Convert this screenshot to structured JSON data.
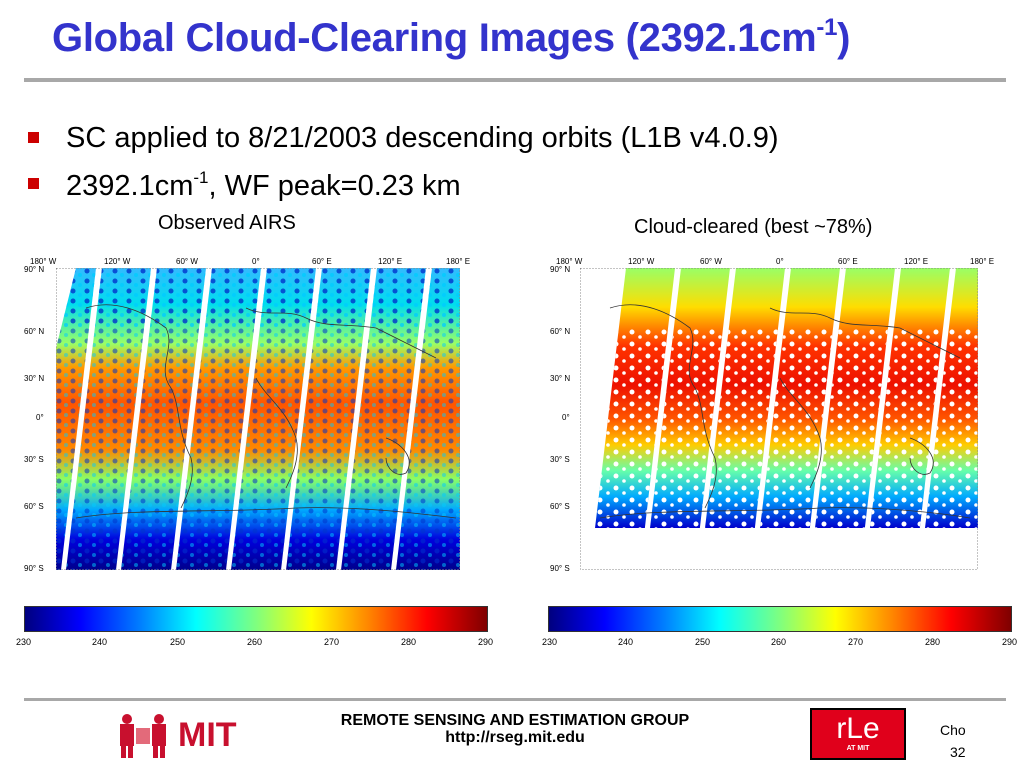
{
  "slide": {
    "title_main": "Global Cloud-Clearing Images (2392.1cm",
    "title_sup": "-1",
    "title_close": ")",
    "bullets": [
      {
        "text": "SC applied to 8/21/2003 descending orbits (L1B v4.0.9)"
      },
      {
        "text_pre": "2392.1cm",
        "sup": "-1",
        "text_post": ", WF peak=0.23 km"
      }
    ],
    "captions": {
      "left": "Observed AIRS",
      "right": "Cloud-cleared (best ~78%)"
    }
  },
  "maps": {
    "lon_labels": [
      "180° W",
      "120° W",
      "60° W",
      "0°",
      "60° E",
      "120° E",
      "180° E"
    ],
    "lat_labels": [
      "90° N",
      "60° N",
      "30° N",
      "0°",
      "30° S",
      "60° S",
      "90° S"
    ]
  },
  "colorbar": {
    "ticks_left": [
      "230",
      "240",
      "250",
      "260",
      "270",
      "280",
      "290"
    ],
    "ticks_right": [
      "230",
      "240",
      "250",
      "260",
      "270",
      "280",
      "290"
    ],
    "min": 230,
    "max": 290
  },
  "footer": {
    "group": "REMOTE SENSING AND ESTIMATION GROUP",
    "url": "http://rseg.mit.edu",
    "mit_label": "MIT",
    "rle_label": "rLe",
    "rle_sub": "AT MIT",
    "author": "Cho",
    "page": "32"
  },
  "colors": {
    "title": "#3333cc",
    "bullet": "#cc0000",
    "rule": "#a8a8a8",
    "rle": "#e0001b",
    "mit": "#a31f34"
  }
}
